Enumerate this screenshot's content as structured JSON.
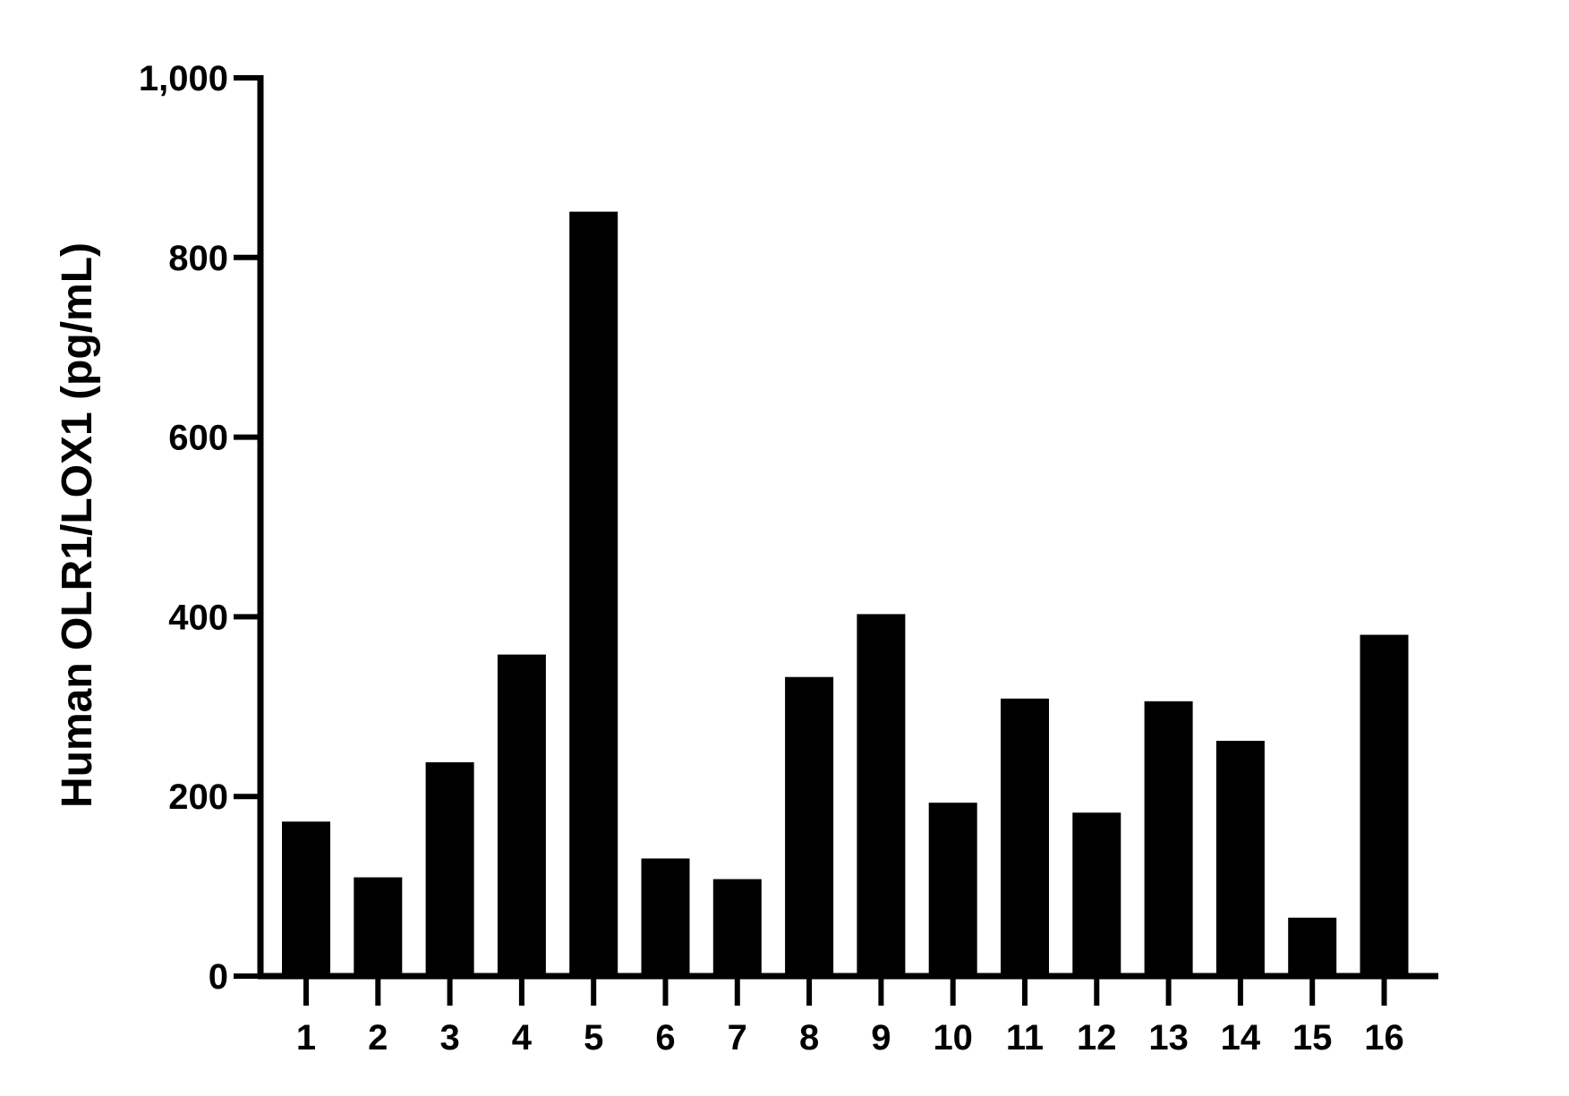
{
  "chart_data": {
    "type": "bar",
    "title": "",
    "xlabel": "",
    "ylabel": "Human OLR1/LOX1 (pg/mL)",
    "categories": [
      "1",
      "2",
      "3",
      "4",
      "5",
      "6",
      "7",
      "8",
      "9",
      "10",
      "11",
      "12",
      "13",
      "14",
      "15",
      "16"
    ],
    "values": [
      172,
      110,
      238,
      358,
      851,
      131,
      108,
      333,
      403,
      193,
      309,
      182,
      306,
      262,
      65,
      380
    ],
    "ylim": [
      0,
      1000
    ],
    "yticks": [
      0,
      200,
      400,
      600,
      800,
      1000
    ],
    "ytick_labels": [
      "0",
      "200",
      "400",
      "600",
      "800",
      "1,000"
    ],
    "grid": false,
    "legend": "none",
    "bar_color": "#000000",
    "axis_color": "#000000"
  }
}
